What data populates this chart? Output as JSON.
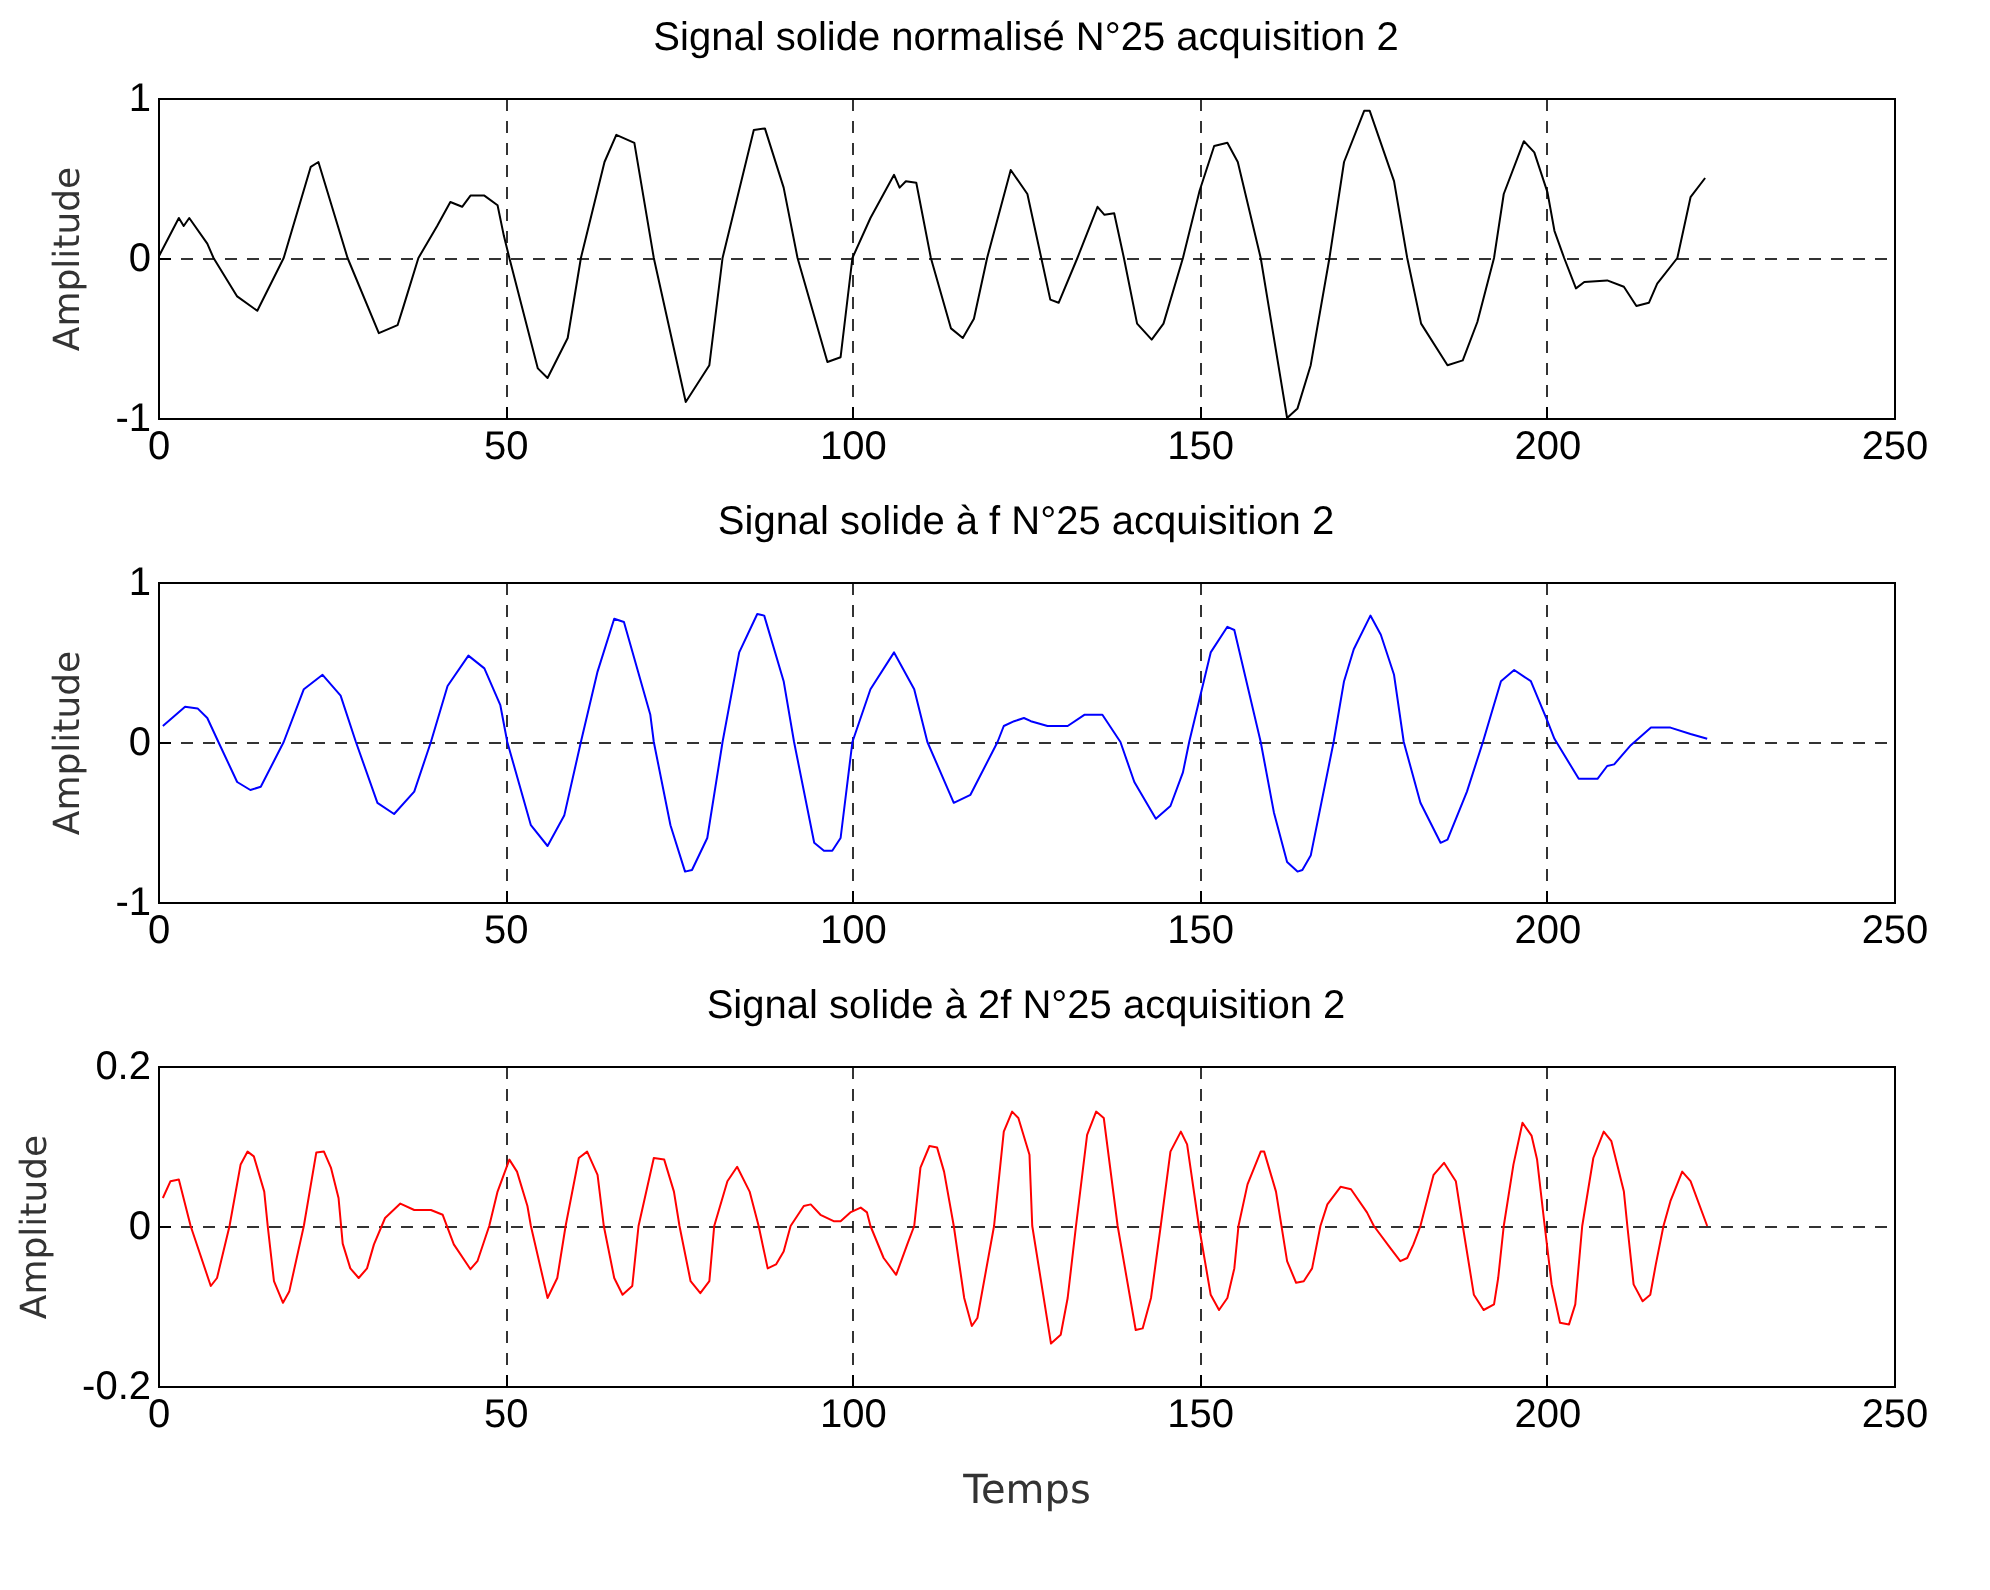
{
  "chart_data": [
    {
      "type": "line",
      "title": "Signal solide normalisé N°25 acquisition 2",
      "ylabel": "Amplitude",
      "xlim": [
        0,
        250
      ],
      "ylim": [
        -1,
        1
      ],
      "xticks": [
        0,
        50,
        100,
        150,
        200,
        250
      ],
      "yticks": [
        -1,
        0,
        1
      ],
      "grid": true,
      "x": [
        0,
        3.0,
        3.7,
        4.5,
        7.1,
        8.0,
        11.4,
        14.3,
        18.1,
        22.0,
        23.1,
        27.3,
        31.8,
        34.5,
        35.3,
        37.5,
        40.2,
        42.1,
        43.8,
        45.0,
        47.0,
        48.9,
        49.8,
        50.6,
        54.7,
        56.1,
        59.0,
        60.9,
        64.3,
        66.0,
        68.6,
        71.4,
        76.0,
        79.4,
        81.3,
        85.8,
        87.4,
        90.1,
        92.1,
        96.4,
        98.3,
        100.0,
        102.6,
        106.0,
        106.8,
        107.7,
        109.2,
        111.3,
        114.2,
        115.9,
        117.5,
        119.4,
        122.8,
        125.2,
        128.5,
        129.7,
        132.4,
        135.3,
        136.3,
        137.7,
        139.1,
        141.0,
        143.1,
        144.8,
        147.6,
        150.0,
        152.1,
        154.0,
        155.5,
        158.8,
        162.6,
        164.1,
        166.0,
        168.7,
        170.8,
        173.7,
        174.5,
        178.0,
        179.9,
        181.9,
        185.7,
        187.9,
        190.0,
        192.4,
        193.8,
        196.7,
        198.2,
        200.1,
        201.1,
        202.5,
        204.2,
        205.4,
        208.7,
        211.1,
        212.9,
        214.7,
        215.9,
        218.8,
        220.7,
        222.8
      ],
      "series": [
        {
          "color": "#000000",
          "values": [
            0,
            0.25,
            0.2,
            0.25,
            0.09,
            0,
            -0.24,
            -0.33,
            0,
            0.57,
            0.6,
            0,
            -0.47,
            -0.42,
            -0.31,
            0,
            0.2,
            0.35,
            0.32,
            0.39,
            0.39,
            0.33,
            0.14,
            0,
            -0.69,
            -0.75,
            -0.5,
            0,
            0.6,
            0.77,
            0.72,
            0,
            -0.9,
            -0.67,
            0,
            0.8,
            0.81,
            0.44,
            0,
            -0.65,
            -0.62,
            0,
            0.25,
            0.52,
            0.44,
            0.48,
            0.47,
            0,
            -0.44,
            -0.5,
            -0.38,
            0,
            0.55,
            0.4,
            -0.26,
            -0.28,
            0,
            0.32,
            0.27,
            0.28,
            0,
            -0.41,
            -0.51,
            -0.41,
            0,
            0.42,
            0.7,
            0.72,
            0.6,
            0,
            -1.0,
            -0.94,
            -0.67,
            0,
            0.6,
            0.92,
            0.92,
            0.48,
            0,
            -0.41,
            -0.67,
            -0.64,
            -0.4,
            0,
            0.4,
            0.73,
            0.66,
            0.41,
            0.17,
            0,
            -0.19,
            -0.15,
            -0.14,
            -0.18,
            -0.3,
            -0.28,
            -0.16,
            0,
            0.38,
            0.5
          ]
        }
      ]
    },
    {
      "type": "line",
      "title": "Signal solide à f  N°25 acquisition 2",
      "ylabel": "Amplitude",
      "xlim": [
        0,
        250
      ],
      "ylim": [
        -1,
        1
      ],
      "xticks": [
        0,
        50,
        100,
        150,
        200,
        250
      ],
      "yticks": [
        -1,
        0,
        1
      ],
      "grid": true,
      "x": [
        0.7,
        3.9,
        5.7,
        7.1,
        8.7,
        11.4,
        13.3,
        14.8,
        18.1,
        21.0,
        23.7,
        26.3,
        28.5,
        31.6,
        34.0,
        36.9,
        39.3,
        41.7,
        44.7,
        47.0,
        49.3,
        50.3,
        53.7,
        56.1,
        58.5,
        60.9,
        63.3,
        65.7,
        67.1,
        70.9,
        71.4,
        73.8,
        75.9,
        76.9,
        79.1,
        81.3,
        83.7,
        86.3,
        87.3,
        90.1,
        91.6,
        94.5,
        95.9,
        97.1,
        98.3,
        100.0,
        102.6,
        106.0,
        108.9,
        110.8,
        114.6,
        117.0,
        120.9,
        121.8,
        123.3,
        124.7,
        125.7,
        128.1,
        131.0,
        133.4,
        136.0,
        138.6,
        140.6,
        143.7,
        145.8,
        147.6,
        148.5,
        151.6,
        154.0,
        155.0,
        158.8,
        160.7,
        162.6,
        164.1,
        164.8,
        166.0,
        169.3,
        170.8,
        172.2,
        174.6,
        176.1,
        178.0,
        179.4,
        181.8,
        184.7,
        185.7,
        188.5,
        190.8,
        193.4,
        195.3,
        197.7,
        200.1,
        201.1,
        204.6,
        207.3,
        208.7,
        209.7,
        212.1,
        215.0,
        217.8,
        220.7,
        223.1
      ],
      "series": [
        {
          "color": "#0000ff",
          "values": [
            0.1,
            0.22,
            0.21,
            0.15,
            0,
            -0.25,
            -0.3,
            -0.28,
            0,
            0.33,
            0.42,
            0.29,
            0,
            -0.38,
            -0.45,
            -0.31,
            0,
            0.35,
            0.54,
            0.46,
            0.23,
            0,
            -0.52,
            -0.65,
            -0.46,
            0,
            0.44,
            0.77,
            0.75,
            0.17,
            0,
            -0.52,
            -0.81,
            -0.8,
            -0.6,
            0,
            0.56,
            0.8,
            0.79,
            0.38,
            0,
            -0.63,
            -0.68,
            -0.68,
            -0.6,
            0,
            0.33,
            0.56,
            0.33,
            0,
            -0.38,
            -0.33,
            0,
            0.1,
            0.13,
            0.15,
            0.13,
            0.1,
            0.1,
            0.17,
            0.17,
            0,
            -0.25,
            -0.48,
            -0.4,
            -0.19,
            0,
            0.56,
            0.72,
            0.7,
            0,
            -0.44,
            -0.75,
            -0.81,
            -0.8,
            -0.71,
            0,
            0.38,
            0.58,
            0.79,
            0.67,
            0.42,
            0,
            -0.38,
            -0.63,
            -0.61,
            -0.31,
            0,
            0.38,
            0.45,
            0.38,
            0.13,
            0.02,
            -0.23,
            -0.23,
            -0.15,
            -0.14,
            -0.02,
            0.09,
            0.09,
            0.05,
            0.02
          ]
        }
      ]
    },
    {
      "type": "line",
      "title": "Signal solide à 2f N°25 acquisition 2",
      "xlabel": "Temps",
      "ylabel": "Amplitude",
      "xlim": [
        0,
        250
      ],
      "ylim": [
        -0.2,
        0.2
      ],
      "xticks": [
        0,
        50,
        100,
        150,
        200,
        250
      ],
      "yticks": [
        -0.2,
        0,
        0.2
      ],
      "grid": true,
      "x": [
        0.7,
        1.8,
        3.0,
        4.7,
        7.6,
        8.5,
        10.3,
        11.9,
        12.9,
        13.8,
        15.3,
        15.8,
        16.7,
        18.0,
        18.9,
        21.0,
        22.8,
        23.9,
        24.9,
        26.0,
        26.6,
        27.7,
        28.9,
        30.1,
        31.1,
        32.7,
        34.9,
        36.9,
        39.3,
        41.0,
        42.6,
        45.0,
        46.0,
        47.7,
        48.9,
        50.6,
        51.7,
        53.2,
        53.7,
        56.1,
        57.5,
        58.7,
        60.6,
        61.8,
        63.3,
        64.2,
        65.7,
        66.9,
        68.3,
        69.2,
        71.4,
        72.9,
        74.3,
        75.1,
        76.7,
        78.1,
        79.4,
        80.1,
        82.0,
        83.4,
        85.2,
        86.5,
        87.8,
        89.0,
        90.1,
        91.1,
        93.0,
        94.0,
        95.4,
        97.3,
        98.3,
        99.7,
        101.2,
        102.1,
        102.6,
        104.5,
        106.3,
        107.9,
        108.9,
        109.8,
        111.1,
        112.2,
        113.2,
        114.6,
        116.1,
        117.2,
        118.0,
        120.4,
        121.8,
        123.0,
        123.9,
        125.5,
        125.9,
        128.6,
        130.0,
        131.0,
        132.2,
        133.8,
        135.1,
        136.2,
        138.2,
        140.8,
        141.8,
        143.0,
        144.4,
        145.8,
        147.3,
        148.2,
        149.9,
        151.6,
        152.8,
        154.0,
        155.0,
        155.6,
        156.9,
        158.8,
        159.3,
        161.0,
        162.6,
        163.9,
        165.0,
        166.2,
        167.4,
        168.4,
        170.3,
        171.8,
        174.1,
        175.1,
        177.5,
        178.9,
        179.9,
        180.8,
        181.8,
        183.7,
        185.2,
        186.9,
        187.9,
        189.5,
        190.9,
        192.4,
        193.0,
        193.8,
        195.2,
        196.5,
        197.8,
        198.6,
        199.7,
        200.7,
        201.9,
        203.2,
        204.1,
        205.1,
        206.7,
        208.2,
        209.3,
        211.1,
        211.6,
        212.5,
        213.8,
        214.9,
        215.7,
        216.8,
        217.8,
        219.5,
        220.7,
        223.1
      ],
      "series": [
        {
          "color": "#ff0000",
          "values": [
            0.035,
            0.056,
            0.058,
            0,
            -0.075,
            -0.065,
            0,
            0.077,
            0.093,
            0.087,
            0.043,
            0,
            -0.069,
            -0.096,
            -0.082,
            0,
            0.092,
            0.093,
            0.073,
            0.035,
            -0.022,
            -0.053,
            -0.065,
            -0.053,
            -0.023,
            0.01,
            0.028,
            0.02,
            0.02,
            0.014,
            -0.023,
            -0.054,
            -0.044,
            0,
            0.043,
            0.083,
            0.068,
            0.025,
            0,
            -0.09,
            -0.065,
            0,
            0.085,
            0.093,
            0.064,
            0,
            -0.065,
            -0.086,
            -0.075,
            0,
            0.085,
            0.083,
            0.043,
            0,
            -0.069,
            -0.084,
            -0.069,
            0,
            0.056,
            0.074,
            0.043,
            0,
            -0.053,
            -0.048,
            -0.032,
            0,
            0.025,
            0.027,
            0.014,
            0.006,
            0.006,
            0.017,
            0.023,
            0.017,
            0,
            -0.04,
            -0.061,
            -0.023,
            0,
            0.073,
            0.1,
            0.098,
            0.068,
            0,
            -0.09,
            -0.125,
            -0.115,
            0,
            0.118,
            0.143,
            0.135,
            0.089,
            0,
            -0.147,
            -0.136,
            -0.09,
            0,
            0.114,
            0.143,
            0.135,
            0,
            -0.13,
            -0.128,
            -0.09,
            0,
            0.093,
            0.118,
            0.102,
            0,
            -0.086,
            -0.105,
            -0.09,
            -0.053,
            0,
            0.052,
            0.093,
            0.093,
            0.043,
            -0.044,
            -0.071,
            -0.069,
            -0.053,
            0,
            0.027,
            0.049,
            0.046,
            0.017,
            0,
            -0.028,
            -0.044,
            -0.04,
            -0.023,
            0,
            0.064,
            0.079,
            0.056,
            0,
            -0.086,
            -0.105,
            -0.098,
            -0.065,
            0,
            0.077,
            0.129,
            0.113,
            0.083,
            0,
            -0.073,
            -0.121,
            -0.123,
            -0.098,
            0,
            0.085,
            0.118,
            0.106,
            0.043,
            0,
            -0.073,
            -0.094,
            -0.086,
            -0.048,
            0,
            0.031,
            0.068,
            0.056,
            0
          ]
        }
      ]
    }
  ]
}
